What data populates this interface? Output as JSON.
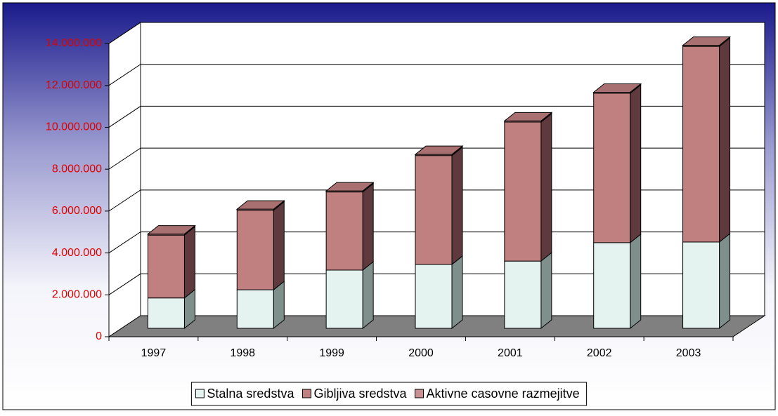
{
  "chart_data": {
    "type": "bar3d_stacked",
    "categories": [
      "1997",
      "1998",
      "1999",
      "2000",
      "2001",
      "2002",
      "2003"
    ],
    "series": [
      {
        "name": "Stalna sredstva",
        "color": "#e4f2f0",
        "side": "#7f8f8c",
        "values": [
          1450000,
          1840000,
          2780000,
          3050000,
          3210000,
          4090000,
          4120000
        ]
      },
      {
        "name": "Gibljiva sredstva",
        "color": "#c08080",
        "side": "#5e3a3e",
        "values": [
          3000000,
          3800000,
          3730000,
          5200000,
          6640000,
          7130000,
          9340000
        ]
      },
      {
        "name": "Aktivne casovne razmejitve",
        "color": "#c89090",
        "side": "#6a4448",
        "values": [
          50000,
          50000,
          50000,
          50000,
          50000,
          50000,
          50000
        ]
      }
    ],
    "ylim": [
      0,
      14000000
    ],
    "yticks": [
      0,
      {
        "value": 2000000,
        "label": "2.000.000"
      },
      {
        "value": 4000000,
        "label": "4.000.000"
      },
      {
        "value": 6000000,
        "label": "6.000.000"
      },
      {
        "value": 8000000,
        "label": "8.000.000"
      },
      {
        "value": 10000000,
        "label": "10.000.000"
      },
      {
        "value": 12000000,
        "label": "12.000.000"
      },
      {
        "value": 14000000,
        "label": "14.000.000"
      }
    ],
    "grid": true,
    "legend": "bottom",
    "tick_color": "#e00000"
  }
}
